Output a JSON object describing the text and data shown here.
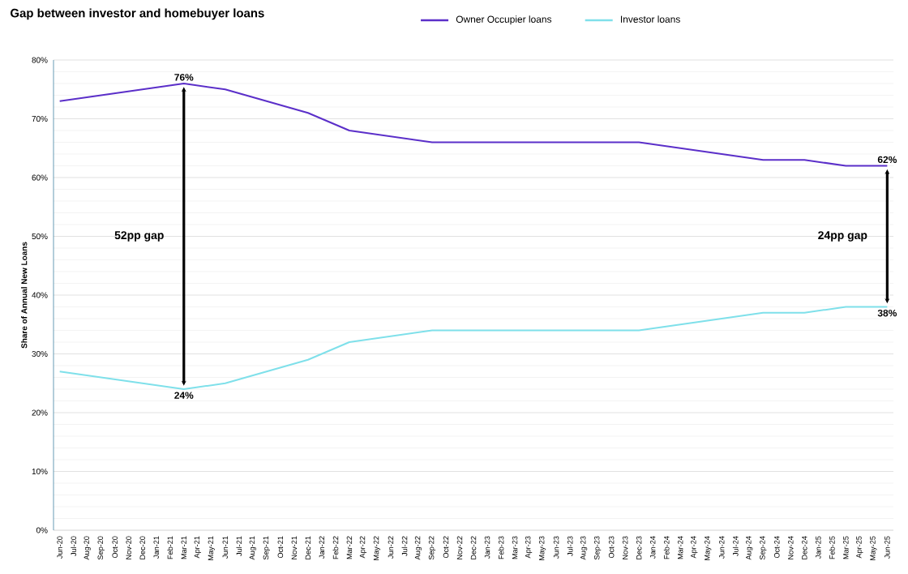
{
  "chart_data": {
    "type": "line",
    "title": "Gap between investor and homebuyer loans",
    "ylabel": "Share of Annual New Loans",
    "categories": [
      "Jun-20",
      "Jul-20",
      "Aug-20",
      "Sep-20",
      "Oct-20",
      "Nov-20",
      "Dec-20",
      "Jan-21",
      "Feb-21",
      "Mar-21",
      "Apr-21",
      "May-21",
      "Jun-21",
      "Jul-21",
      "Aug-21",
      "Sep-21",
      "Oct-21",
      "Nov-21",
      "Dec-21",
      "Jan-22",
      "Feb-22",
      "Mar-22",
      "Apr-22",
      "May-22",
      "Jun-22",
      "Jul-22",
      "Aug-22",
      "Sep-22",
      "Oct-22",
      "Nov-22",
      "Dec-22",
      "Jan-23",
      "Feb-23",
      "Mar-23",
      "Apr-23",
      "May-23",
      "Jun-23",
      "Jul-23",
      "Aug-23",
      "Sep-23",
      "Oct-23",
      "Nov-23",
      "Dec-23",
      "Jan-24",
      "Feb-24",
      "Mar-24",
      "Apr-24",
      "May-24",
      "Jun-24",
      "Jul-24",
      "Aug-24",
      "Sep-24",
      "Oct-24",
      "Nov-24",
      "Dec-24",
      "Jan-25",
      "Feb-25",
      "Mar-25",
      "Apr-25",
      "May-25",
      "Jun-25"
    ],
    "series": [
      {
        "name": "Owner Occupier loans",
        "color": "#5b2fc9",
        "values": [
          73,
          null,
          null,
          null,
          null,
          null,
          null,
          null,
          null,
          76,
          null,
          null,
          75,
          null,
          null,
          null,
          null,
          null,
          71,
          null,
          null,
          68,
          null,
          null,
          null,
          null,
          null,
          66,
          null,
          null,
          null,
          null,
          null,
          null,
          null,
          null,
          null,
          null,
          null,
          null,
          null,
          null,
          66,
          null,
          null,
          null,
          null,
          null,
          null,
          null,
          null,
          63,
          null,
          null,
          63,
          null,
          null,
          62,
          null,
          null,
          62
        ]
      },
      {
        "name": "Investor loans",
        "color": "#7fe0ea",
        "values": [
          27,
          null,
          null,
          null,
          null,
          null,
          null,
          null,
          null,
          24,
          null,
          null,
          25,
          null,
          null,
          null,
          null,
          null,
          29,
          null,
          null,
          32,
          null,
          null,
          null,
          null,
          null,
          34,
          null,
          null,
          null,
          null,
          null,
          null,
          null,
          null,
          null,
          null,
          null,
          null,
          null,
          null,
          34,
          null,
          null,
          null,
          null,
          null,
          null,
          null,
          null,
          37,
          null,
          null,
          37,
          null,
          null,
          38,
          null,
          null,
          38
        ]
      }
    ],
    "ylim": [
      0,
      80
    ],
    "yticks": [
      {
        "value": 0,
        "label": "0%"
      },
      {
        "value": 10,
        "label": "10%"
      },
      {
        "value": 20,
        "label": "20%"
      },
      {
        "value": 30,
        "label": "30%"
      },
      {
        "value": 40,
        "label": "40%"
      },
      {
        "value": 50,
        "label": "50%"
      },
      {
        "value": 60,
        "label": "60%"
      },
      {
        "value": 70,
        "label": "70%"
      },
      {
        "value": 80,
        "label": "80%"
      }
    ],
    "grid": "y",
    "legend": "top right",
    "line_style": "solid",
    "marker": "none",
    "annotations": [
      {
        "text": "76%",
        "x": "Mar-21",
        "y": 76
      },
      {
        "text": "24%",
        "x": "Mar-21",
        "y": 24
      },
      "52pp gap",
      {
        "text": "62%",
        "x": "Jun-25",
        "y": 62
      },
      {
        "text": "38%",
        "x": "Jun-25",
        "y": 38
      },
      "24pp gap"
    ]
  }
}
